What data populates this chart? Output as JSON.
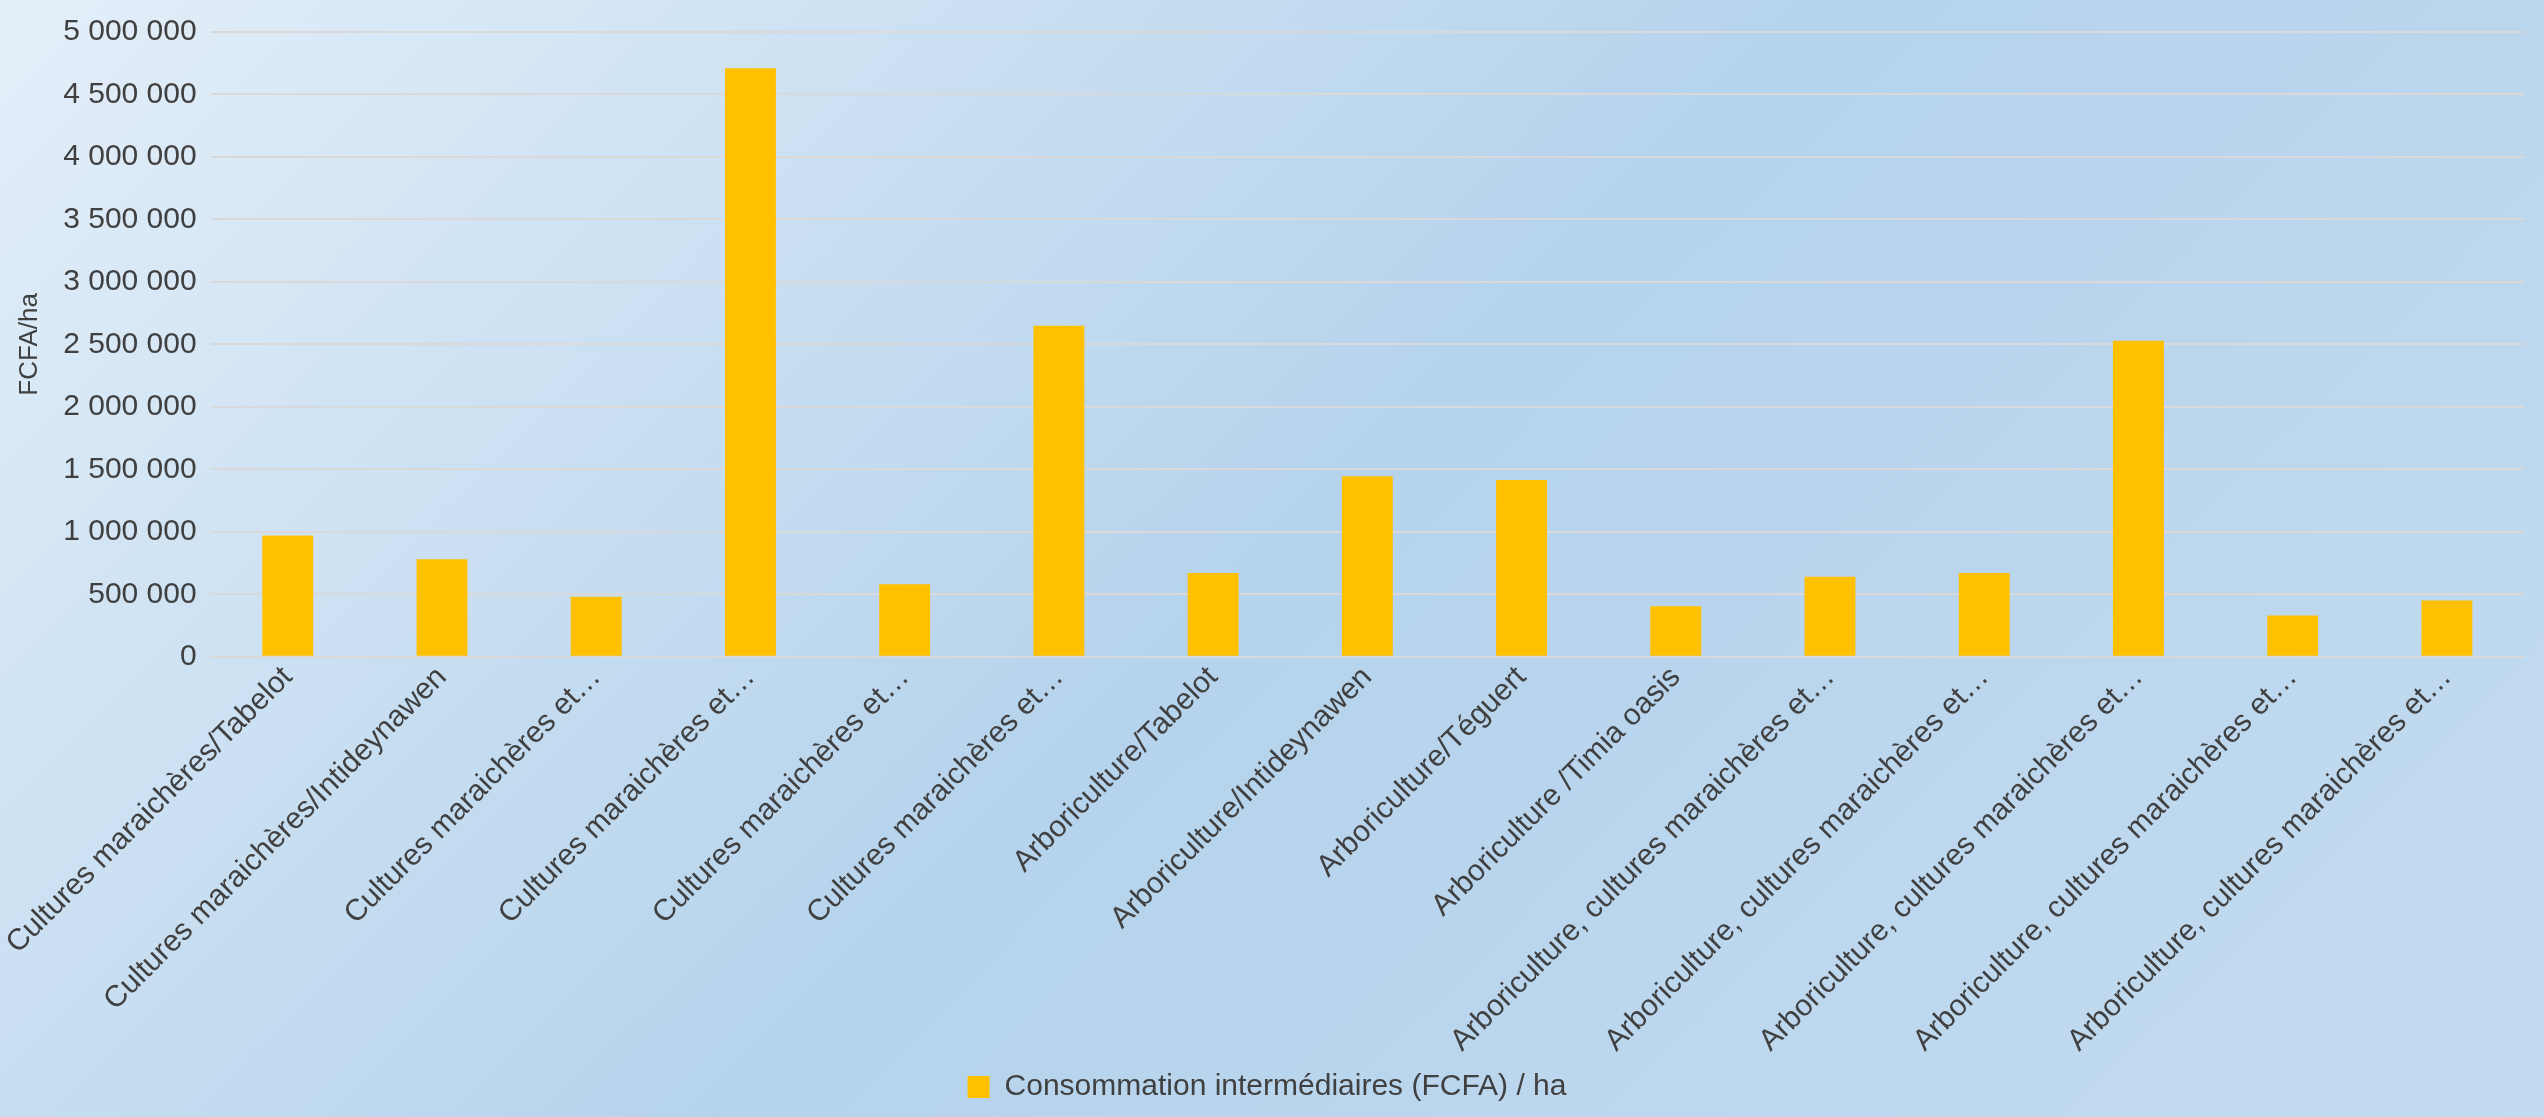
{
  "chart_data": {
    "type": "bar",
    "ylabel": "FCFA/ha",
    "categories": [
      "Cultures maraichères/Tabelot",
      "Cultures maraichères/Intideynawen",
      "Cultures maraichères et…",
      "Cultures maraichères et…",
      "Cultures maraichères et…",
      "Cultures maraichères et…",
      "Arboriculture/Tabelot",
      "Arboriculture/Intideynawen",
      "Arboriculture/Téguert",
      "Arboriculture /Timia oasis",
      "Arboriculture, cultures maraichères et…",
      "Arboriculture, cultures maraichères et…",
      "Arboriculture, cultures maraichères et…",
      "Arboriculture, cultures maraichères et…",
      "Arboriculture, cultures maraichères et…"
    ],
    "series": [
      {
        "name": "Consommation intermédiaires (FCFA) / ha",
        "color": "#ffc000",
        "values": [
          970000,
          780000,
          480000,
          4710000,
          580000,
          2650000,
          670000,
          1445000,
          1415000,
          405000,
          640000,
          670000,
          2530000,
          330000,
          450000
        ]
      }
    ],
    "ylim": [
      0,
      5000000
    ],
    "yticks": [
      0,
      {
        "value": 500000,
        "label": "500 000"
      },
      {
        "value": 1000000,
        "label": "1 000 000"
      },
      {
        "value": 1500000,
        "label": "1 500 000"
      },
      {
        "value": 2000000,
        "label": "2 000 000"
      },
      {
        "value": 2500000,
        "label": "2 500 000"
      },
      {
        "value": 3000000,
        "label": "3 000 000"
      },
      {
        "value": 3500000,
        "label": "3 500 000"
      },
      {
        "value": 4000000,
        "label": "4 000 000"
      },
      {
        "value": 4500000,
        "label": "4 500 000"
      },
      {
        "value": 5000000,
        "label": "5 000 000"
      }
    ],
    "grid": "y",
    "legend": "bottom"
  }
}
